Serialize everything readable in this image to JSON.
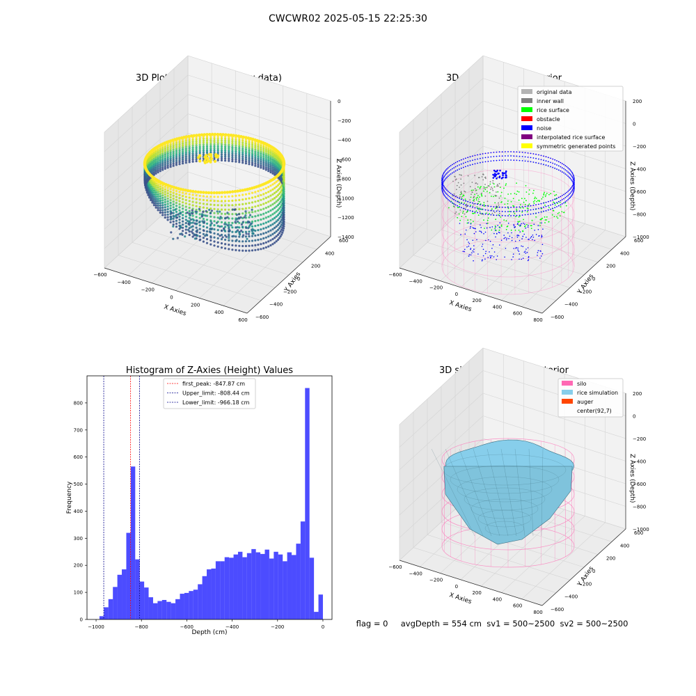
{
  "figure": {
    "suptitle": "CWCWR02 2025-05-15 22:25:30",
    "status_line": "flag = 0     avgDepth = 554 cm  sv1 = 500~2500  sv2 = 500~2500"
  },
  "colors": {
    "grid": "#cccccc",
    "pane": "#f2f2f2",
    "hist_bar": "#0000ff",
    "silo_wire": "#ff69b4",
    "rice_sim": "#87ceeb",
    "first_peak_line": "#ff0000",
    "limit_line": "#00008b"
  },
  "chart_data": [
    {
      "type": "scatter",
      "title": "3D Plot of Silo Interior(row data)",
      "xlabel": "X Axies",
      "ylabel": "Y Axies",
      "zlabel": "Z Axies (Depth)",
      "x_ticks": [
        "−600",
        "−400",
        "−200",
        "0",
        "200",
        "400",
        "600"
      ],
      "y_ticks": [
        "−600",
        "−400",
        "−200",
        "0",
        "200",
        "400",
        "600"
      ],
      "z_ticks": [
        "0",
        "−200",
        "−400",
        "−600",
        "−800",
        "−1000",
        "−1200",
        "−1400"
      ],
      "xlim": [
        -600,
        600
      ],
      "ylim": [
        -600,
        600
      ],
      "zlim": [
        -1400,
        0
      ],
      "colormap": "viridis"
    },
    {
      "type": "scatter",
      "title": "3D classify of Silo Interior",
      "xlabel": "X Axies",
      "ylabel": "Y Axies",
      "zlabel": "Z Axies (Depth)",
      "x_ticks": [
        "−600",
        "−400",
        "−200",
        "0",
        "200",
        "400",
        "600",
        "800"
      ],
      "y_ticks": [
        "−600",
        "−400",
        "−200",
        "0",
        "200",
        "400",
        "600"
      ],
      "z_ticks": [
        "200",
        "0",
        "−200",
        "−400",
        "−600",
        "−800",
        "−1000"
      ],
      "legend": [
        {
          "label": "original data",
          "color": "#b3b3b3"
        },
        {
          "label": "inner wall",
          "color": "#808080"
        },
        {
          "label": "rice surface",
          "color": "#00ff00"
        },
        {
          "label": "obstacle",
          "color": "#ff0000"
        },
        {
          "label": "noise",
          "color": "#0000ff"
        },
        {
          "label": "interpolated rice surface",
          "color": "#800080"
        },
        {
          "label": "symmetric generated points",
          "color": "#ffff00"
        }
      ],
      "legend_loc": "upper right"
    },
    {
      "type": "bar",
      "title": "Histogram of Z-Axies (Height) Values",
      "xlabel": "Depth (cm)",
      "ylabel": "Frequency",
      "xlim": [
        -1040,
        40
      ],
      "ylim": [
        0,
        900
      ],
      "x_ticks": [
        -1000,
        -800,
        -600,
        -400,
        -200,
        0
      ],
      "x_tick_labels": [
        "−1000",
        "−800",
        "−600",
        "−400",
        "−200",
        "0"
      ],
      "y_ticks": [
        0,
        100,
        200,
        300,
        400,
        500,
        600,
        700,
        800
      ],
      "bin_start": -985,
      "bin_width": 19.7,
      "values": [
        12,
        45,
        75,
        120,
        165,
        185,
        320,
        565,
        222,
        140,
        118,
        82,
        60,
        68,
        72,
        65,
        60,
        75,
        95,
        98,
        105,
        110,
        130,
        160,
        185,
        188,
        215,
        215,
        230,
        228,
        240,
        250,
        230,
        245,
        260,
        248,
        242,
        258,
        225,
        250,
        240,
        215,
        248,
        238,
        280,
        362,
        855,
        228,
        28,
        92
      ],
      "lines": [
        {
          "label": "first_peak: -847.87 cm",
          "x": -847.87,
          "color": "#ff0000"
        },
        {
          "label": "Upper_limit: -808.44 cm",
          "x": -808.44,
          "color": "#00008b"
        },
        {
          "label": "Lower_limit: -966.18 cm",
          "x": -966.18,
          "color": "#00008b"
        }
      ],
      "legend_loc": "upper center"
    },
    {
      "type": "surface",
      "title": "3D simulation of Silo Interior",
      "xlabel": "X Axies",
      "ylabel": "Y Axies",
      "zlabel": "Z Axies (Depth)",
      "x_ticks": [
        "−600",
        "−400",
        "−200",
        "0",
        "200",
        "400",
        "600",
        "800"
      ],
      "y_ticks": [
        "−600",
        "−400",
        "−200",
        "0",
        "200",
        "400",
        "600"
      ],
      "z_ticks": [
        "200",
        "0",
        "−200",
        "−400",
        "−600",
        "−800",
        "−1000"
      ],
      "legend": [
        {
          "label": "silo",
          "color": "#ff69b4"
        },
        {
          "label": "rice simulation",
          "color": "#87ceeb"
        },
        {
          "label": "auger",
          "color": "#ff4500"
        },
        {
          "label": "center(92,7)",
          "color": ""
        }
      ],
      "legend_loc": "upper right"
    }
  ]
}
